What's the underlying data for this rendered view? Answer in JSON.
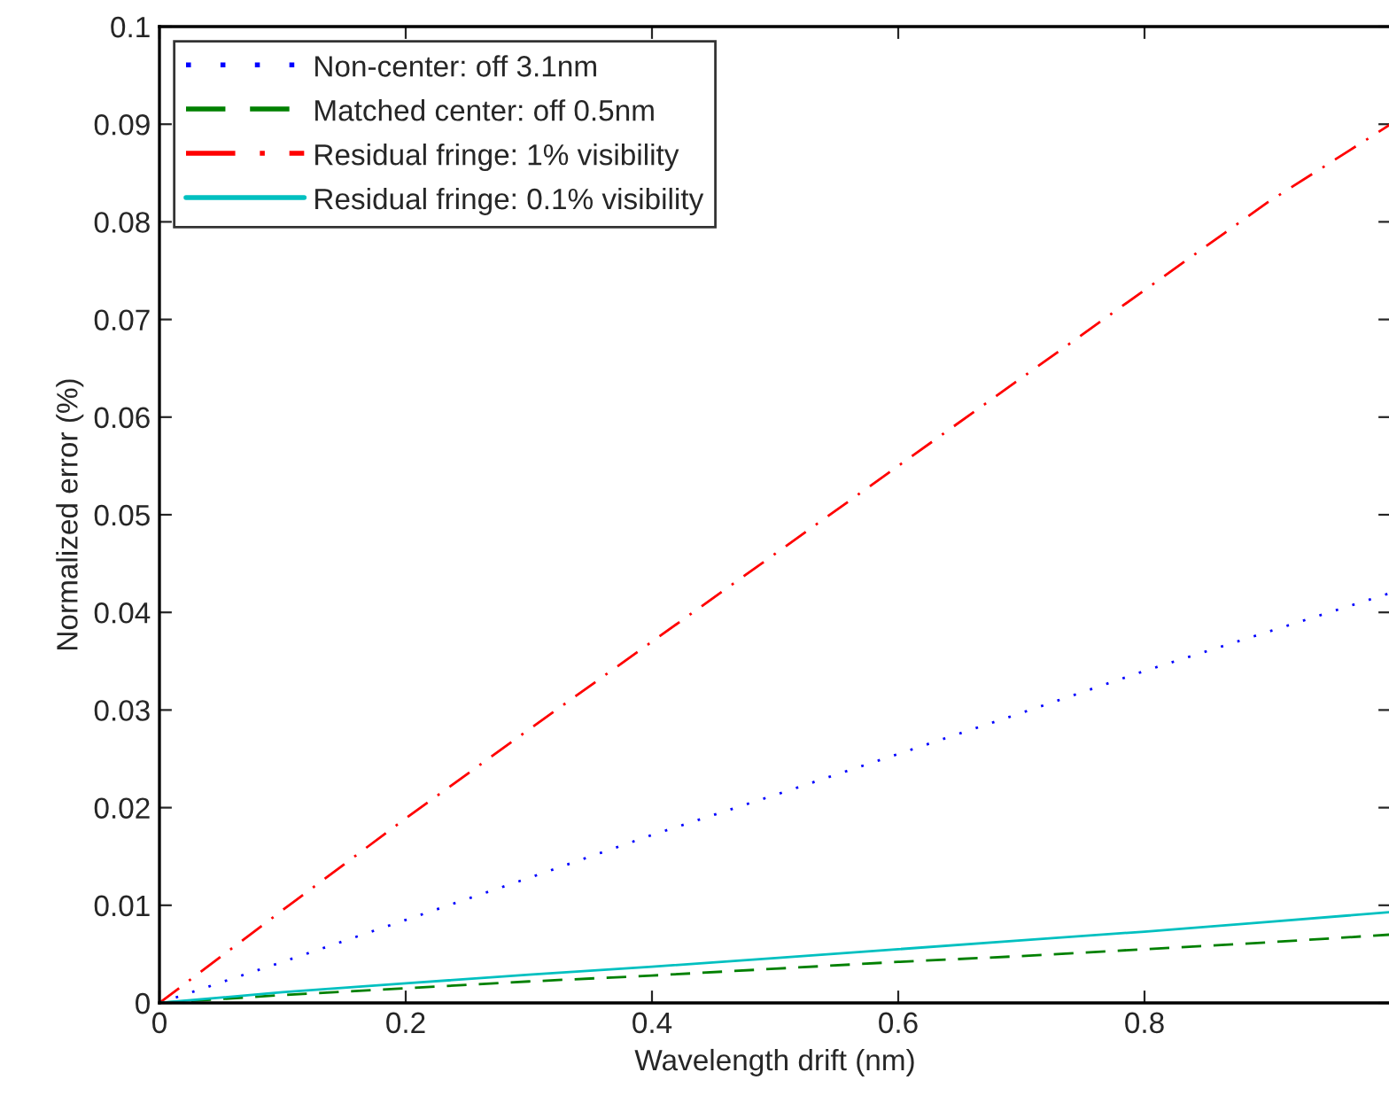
{
  "chart_data": {
    "type": "line",
    "xlabel": "Wavelength drift (nm)",
    "ylabel": "Normalized error (%)",
    "x": [
      0,
      0.1,
      0.2,
      0.3,
      0.4,
      0.5,
      0.6,
      0.7,
      0.8,
      0.9,
      1.0
    ],
    "series": [
      {
        "name": "Non-center: off 3.1nm",
        "color": "#0000ff",
        "line_style": "dotted",
        "values": [
          0,
          0.0042,
          0.0085,
          0.0128,
          0.0172,
          0.0213,
          0.0255,
          0.0297,
          0.034,
          0.038,
          0.042
        ]
      },
      {
        "name": "Matched center: off 0.5nm",
        "color": "#008000",
        "line_style": "dashed",
        "values": [
          0,
          0.0008,
          0.0015,
          0.0022,
          0.0028,
          0.0035,
          0.0042,
          0.0048,
          0.0055,
          0.0062,
          0.007
        ]
      },
      {
        "name": "Residual fringe: 1% visibility",
        "color": "#ff0000",
        "line_style": "dashdot",
        "values": [
          0,
          0.0095,
          0.0189,
          0.028,
          0.037,
          0.046,
          0.055,
          0.064,
          0.073,
          0.082,
          0.09
        ]
      },
      {
        "name": "Residual fringe: 0.1% visibility",
        "color": "#00c0c0",
        "line_style": "solid",
        "values": [
          0,
          0.0011,
          0.002,
          0.0029,
          0.0037,
          0.0046,
          0.0055,
          0.0064,
          0.0073,
          0.0083,
          0.0093
        ]
      }
    ],
    "xlim": [
      0,
      1
    ],
    "xticks": [
      0,
      0.2,
      0.4,
      0.6,
      0.8
    ],
    "ylim": [
      0,
      0.1
    ],
    "yticks": [
      0,
      0.01,
      0.02,
      0.03,
      0.04,
      0.05,
      0.06,
      0.07,
      0.08,
      0.09,
      0.1
    ],
    "legend": "top left",
    "grid": false
  }
}
